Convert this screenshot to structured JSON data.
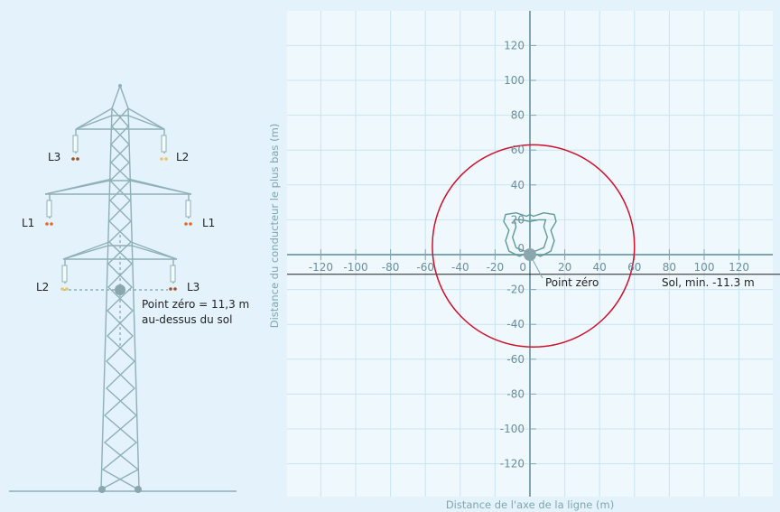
{
  "tower": {
    "phase_labels": {
      "top_left": "L3",
      "top_right": "L2",
      "mid_left": "L1",
      "mid_right": "L1",
      "low_left": "L2",
      "low_right": "L3"
    },
    "zero_point_line1": "Point zéro = 11,3 m",
    "zero_point_line2": "au-dessus du sol"
  },
  "chart_data": {
    "type": "scatter",
    "xlabel": "Distance de l'axe de la ligne (m)",
    "ylabel": "Distance du conducteur le plus bas (m)",
    "xlim": [
      -140,
      140
    ],
    "ylim": [
      -140,
      140
    ],
    "x_ticks": [
      -120,
      -100,
      -80,
      -60,
      -40,
      -20,
      0,
      20,
      40,
      60,
      80,
      100,
      120
    ],
    "y_ticks": [
      -120,
      -100,
      -80,
      -60,
      -40,
      -20,
      0,
      20,
      40,
      60,
      80,
      100,
      120
    ],
    "grid": true,
    "ground_level": -11.3,
    "ground_label": "Sol, min. -11.3 m",
    "zero_label": "Point zéro",
    "series": [
      {
        "name": "",
        "shape": "circle",
        "center": [
          2,
          5
        ],
        "radius": 58,
        "color": "#d0112b"
      },
      {
        "name": "",
        "shape": "contour",
        "color": "#5f9b95",
        "points": [
          [
            -6,
            -1
          ],
          [
            -12,
            2
          ],
          [
            -14,
            8
          ],
          [
            -12,
            14
          ],
          [
            -15,
            19
          ],
          [
            -14,
            23
          ],
          [
            -8,
            24
          ],
          [
            -2,
            22
          ],
          [
            0,
            23
          ],
          [
            2,
            22
          ],
          [
            8,
            24
          ],
          [
            14,
            23
          ],
          [
            15,
            19
          ],
          [
            12,
            14
          ],
          [
            14,
            8
          ],
          [
            12,
            2
          ],
          [
            6,
            -1
          ],
          [
            2,
            1
          ],
          [
            0,
            0
          ],
          [
            -2,
            1
          ],
          [
            -6,
            -1
          ]
        ]
      },
      {
        "name": "",
        "shape": "contour",
        "color": "#5f9b95",
        "points": [
          [
            -8,
            4
          ],
          [
            -10,
            10
          ],
          [
            -8,
            16
          ],
          [
            -9,
            20
          ],
          [
            -5,
            20
          ],
          [
            0,
            19
          ],
          [
            5,
            20
          ],
          [
            9,
            20
          ],
          [
            8,
            16
          ],
          [
            10,
            10
          ],
          [
            8,
            4
          ],
          [
            3,
            2
          ],
          [
            0,
            3
          ],
          [
            -3,
            2
          ],
          [
            -8,
            4
          ]
        ]
      }
    ],
    "colors": {
      "axis": "#7fa6b0",
      "grid": "#c9e4f1",
      "ground": "#222222",
      "marker": "#8aa7ad"
    }
  }
}
